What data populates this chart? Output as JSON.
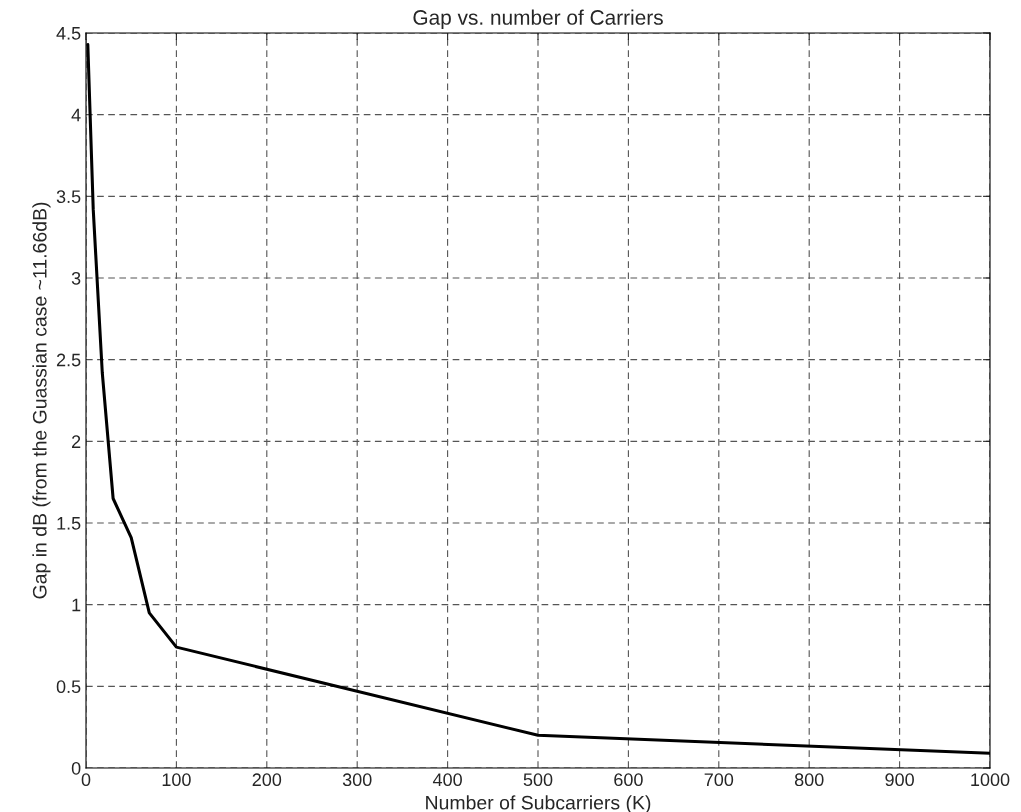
{
  "chart_data": {
    "type": "line",
    "title": "Gap vs. number of Carriers",
    "xlabel": "Number of Subcarriers (K)",
    "ylabel": "Gap in dB (from the Guassian case ~11.66dB)",
    "x": [
      2,
      8,
      18,
      30,
      50,
      70,
      100,
      500,
      1000
    ],
    "series": [
      {
        "color": "#000000",
        "values": [
          4.43,
          3.42,
          2.42,
          1.65,
          1.41,
          0.95,
          0.74,
          0.2,
          0.09
        ]
      }
    ],
    "xlim": [
      0,
      1000
    ],
    "xticks": [
      0,
      100,
      200,
      300,
      400,
      500,
      600,
      700,
      800,
      900,
      1000
    ],
    "ylim": [
      0,
      4.5
    ],
    "yticks": [
      0,
      0.5,
      1,
      1.5,
      2,
      2.5,
      3,
      3.5,
      4,
      4.5
    ],
    "grid": true,
    "line_style": "solid",
    "marker": "none"
  }
}
